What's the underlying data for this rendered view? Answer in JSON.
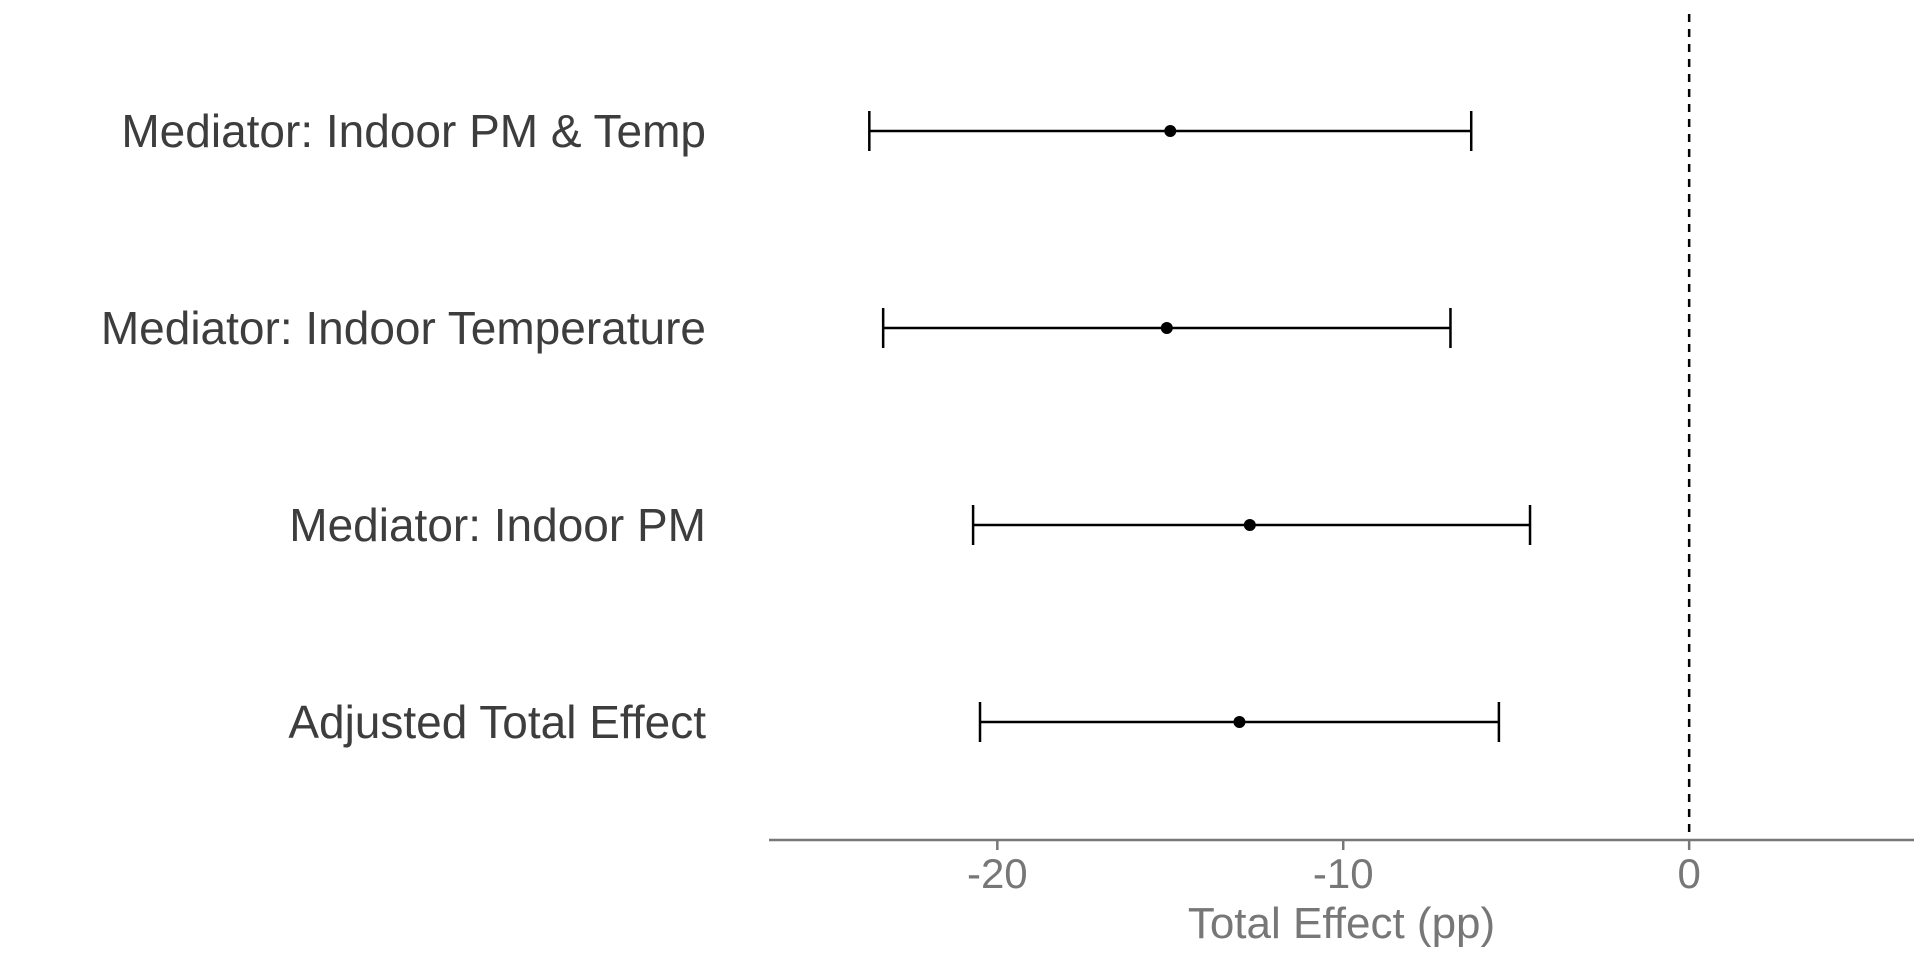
{
  "chart_data": {
    "type": "forest",
    "title": "",
    "xlabel": "Total Effect (pp)",
    "ylabel": "",
    "xlim": [
      -26.6,
      6.5
    ],
    "xticks": [
      -20,
      -10,
      0
    ],
    "xtick_labels": [
      "-20",
      "-10",
      "0"
    ],
    "reference_line": 0,
    "grid": false,
    "categories": [
      "Mediator: Indoor PM & Temp",
      "Mediator: Indoor Temperature",
      "Mediator: Indoor PM",
      "Adjusted Total Effect"
    ],
    "estimates": [
      -15.0,
      -15.1,
      -12.7,
      -13.0
    ],
    "ci_lower": [
      -23.7,
      -23.3,
      -20.7,
      -20.5
    ],
    "ci_upper": [
      -6.3,
      -6.9,
      -4.6,
      -5.5
    ],
    "colors": {
      "marks": "#000000",
      "axis": "#777777",
      "label": "#3d3d3d"
    }
  }
}
